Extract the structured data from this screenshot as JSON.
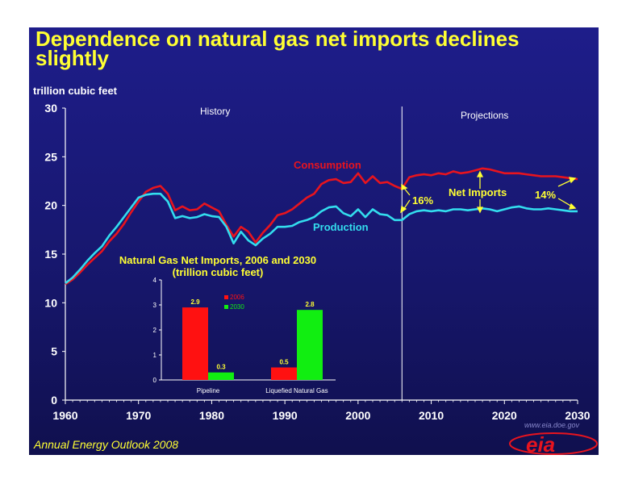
{
  "title": "Dependence on natural gas net imports declines slightly",
  "footer": "Annual Energy Outlook 2008",
  "logo": {
    "text": "eia",
    "url_text": "www.eia.doe.gov"
  },
  "colors": {
    "background": "#1a1a7a",
    "title": "#ffff33",
    "consumption": "#e8141e",
    "production": "#33ddee",
    "inset_red": "#ff1111",
    "inset_green": "#11ee11"
  },
  "chart_data": [
    {
      "type": "line",
      "ylabel": "trillion cubic feet",
      "ylim": [
        0,
        30
      ],
      "xlim": [
        1960,
        2030
      ],
      "yticks": [
        "0",
        "5",
        "10",
        "15",
        "20",
        "25",
        "30"
      ],
      "xticks": [
        "1960",
        "1970",
        "1980",
        "1990",
        "2000",
        "2010",
        "2020",
        "2030"
      ],
      "divider_year": 2006,
      "region_labels": {
        "history": "History",
        "projections": "Projections"
      },
      "annotations": {
        "net_imports": "Net Imports",
        "pct_2006": "16%",
        "pct_2030": "14%"
      },
      "x": [
        1960,
        1961,
        1962,
        1963,
        1964,
        1965,
        1966,
        1967,
        1968,
        1969,
        1970,
        1971,
        1972,
        1973,
        1974,
        1975,
        1976,
        1977,
        1978,
        1979,
        1980,
        1981,
        1982,
        1983,
        1984,
        1985,
        1986,
        1987,
        1988,
        1989,
        1990,
        1991,
        1992,
        1993,
        1994,
        1995,
        1996,
        1997,
        1998,
        1999,
        2000,
        2001,
        2002,
        2003,
        2004,
        2005,
        2006,
        2007,
        2008,
        2009,
        2010,
        2011,
        2012,
        2013,
        2014,
        2015,
        2016,
        2017,
        2018,
        2019,
        2020,
        2021,
        2022,
        2023,
        2024,
        2025,
        2026,
        2027,
        2028,
        2029,
        2030
      ],
      "series": [
        {
          "name": "Consumption",
          "values": [
            11.9,
            12.4,
            13.1,
            13.9,
            14.6,
            15.3,
            16.3,
            17.1,
            18.1,
            19.3,
            20.4,
            21.4,
            21.8,
            22.0,
            21.2,
            19.5,
            19.9,
            19.5,
            19.6,
            20.2,
            19.8,
            19.4,
            18.0,
            16.8,
            17.8,
            17.3,
            16.2,
            17.2,
            18.0,
            19.0,
            19.2,
            19.6,
            20.2,
            20.8,
            21.2,
            22.2,
            22.6,
            22.7,
            22.3,
            22.4,
            23.3,
            22.3,
            23.0,
            22.3,
            22.4,
            22.0,
            21.7,
            22.9,
            23.1,
            23.2,
            23.1,
            23.3,
            23.2,
            23.5,
            23.3,
            23.4,
            23.6,
            23.8,
            23.7,
            23.5,
            23.3,
            23.3,
            23.3,
            23.2,
            23.1,
            23.0,
            23.0,
            23.0,
            22.9,
            22.8,
            22.7
          ]
        },
        {
          "name": "Production",
          "values": [
            12.0,
            12.6,
            13.4,
            14.3,
            15.1,
            15.8,
            16.9,
            17.8,
            18.8,
            19.8,
            20.8,
            21.1,
            21.2,
            21.2,
            20.4,
            18.7,
            18.9,
            18.7,
            18.8,
            19.1,
            18.9,
            18.8,
            17.8,
            16.1,
            17.3,
            16.4,
            15.9,
            16.6,
            17.1,
            17.8,
            17.8,
            17.9,
            18.3,
            18.5,
            18.8,
            19.4,
            19.8,
            19.9,
            19.2,
            18.9,
            19.6,
            18.8,
            19.6,
            19.1,
            19.0,
            18.5,
            18.5,
            19.1,
            19.4,
            19.5,
            19.4,
            19.5,
            19.4,
            19.6,
            19.6,
            19.5,
            19.6,
            19.7,
            19.6,
            19.4,
            19.6,
            19.8,
            19.9,
            19.7,
            19.6,
            19.6,
            19.7,
            19.6,
            19.5,
            19.4,
            19.4
          ]
        }
      ]
    },
    {
      "type": "bar",
      "title": "Natural Gas Net Imports, 2006 and 2030",
      "subtitle": "(trillion cubic feet)",
      "categories": [
        "Pipeline",
        "Liquefied Natural Gas"
      ],
      "ylim": [
        0,
        4
      ],
      "yticks": [
        "0",
        "1",
        "2",
        "3",
        "4"
      ],
      "legend_position": "top",
      "series": [
        {
          "name": "2006",
          "values": [
            2.9,
            0.5
          ],
          "labels": [
            "2.9",
            "0.5"
          ]
        },
        {
          "name": "2030",
          "values": [
            0.3,
            2.8
          ],
          "labels": [
            "0.3",
            "2.8"
          ]
        }
      ]
    }
  ]
}
